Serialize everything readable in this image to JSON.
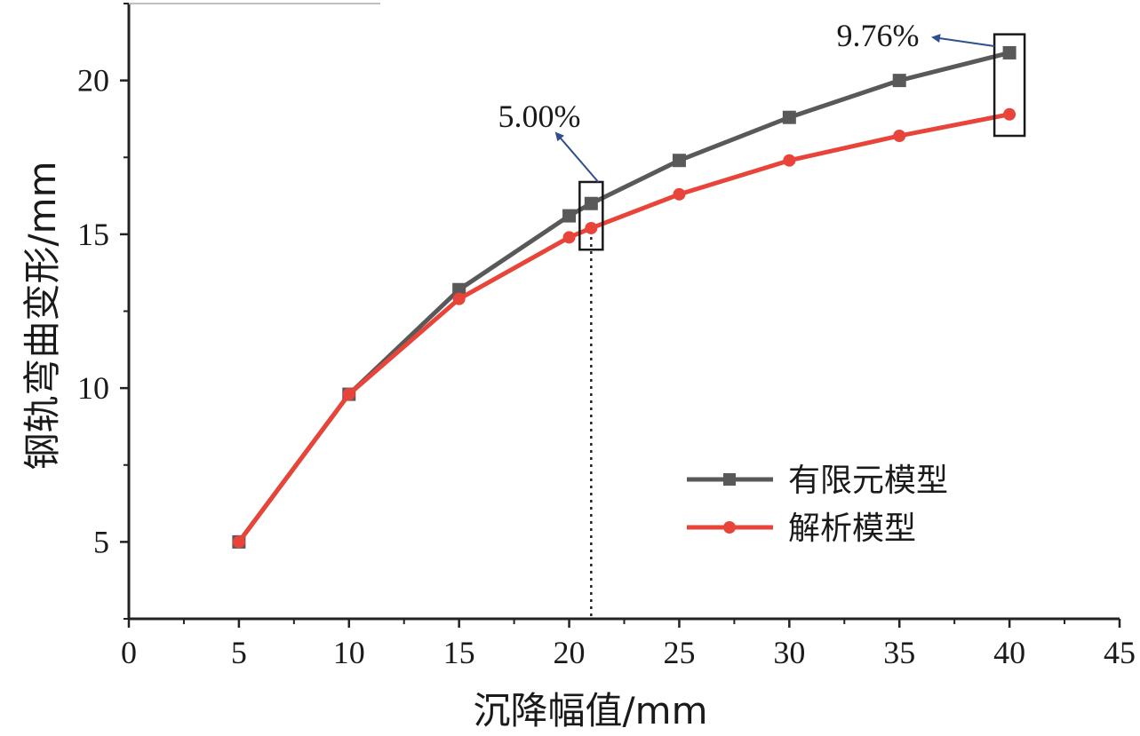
{
  "chart_data": {
    "type": "line",
    "title": "",
    "xlabel": "沉降幅值/mm",
    "ylabel": "钢轨弯曲变形/mm",
    "xlim": [
      0,
      45
    ],
    "ylim": [
      2.5,
      22.5
    ],
    "xticks": [
      0,
      5,
      10,
      15,
      20,
      25,
      30,
      35,
      40,
      45
    ],
    "yticks": [
      5,
      10,
      15,
      20
    ],
    "x": [
      5,
      10,
      15,
      20,
      21,
      25,
      30,
      35,
      40
    ],
    "series": [
      {
        "name": "有限元模型",
        "color": "#595959",
        "marker": "square",
        "values": [
          5.0,
          9.8,
          13.2,
          15.6,
          16.0,
          17.4,
          18.8,
          20.0,
          20.9
        ]
      },
      {
        "name": "解析模型",
        "color": "#e8443a",
        "marker": "circle",
        "values": [
          5.0,
          9.8,
          12.9,
          14.9,
          15.2,
          16.3,
          17.4,
          18.2,
          18.9
        ]
      }
    ],
    "legend_position": "lower-right",
    "grid": false,
    "reference_line": {
      "x": 21,
      "style": "dotted"
    },
    "annotations": [
      {
        "text": "5.00%",
        "x": 21,
        "box_y": [
          14.5,
          16.7
        ]
      },
      {
        "text": "9.76%",
        "x": 40,
        "box_y": [
          18.2,
          21.5
        ]
      }
    ]
  }
}
